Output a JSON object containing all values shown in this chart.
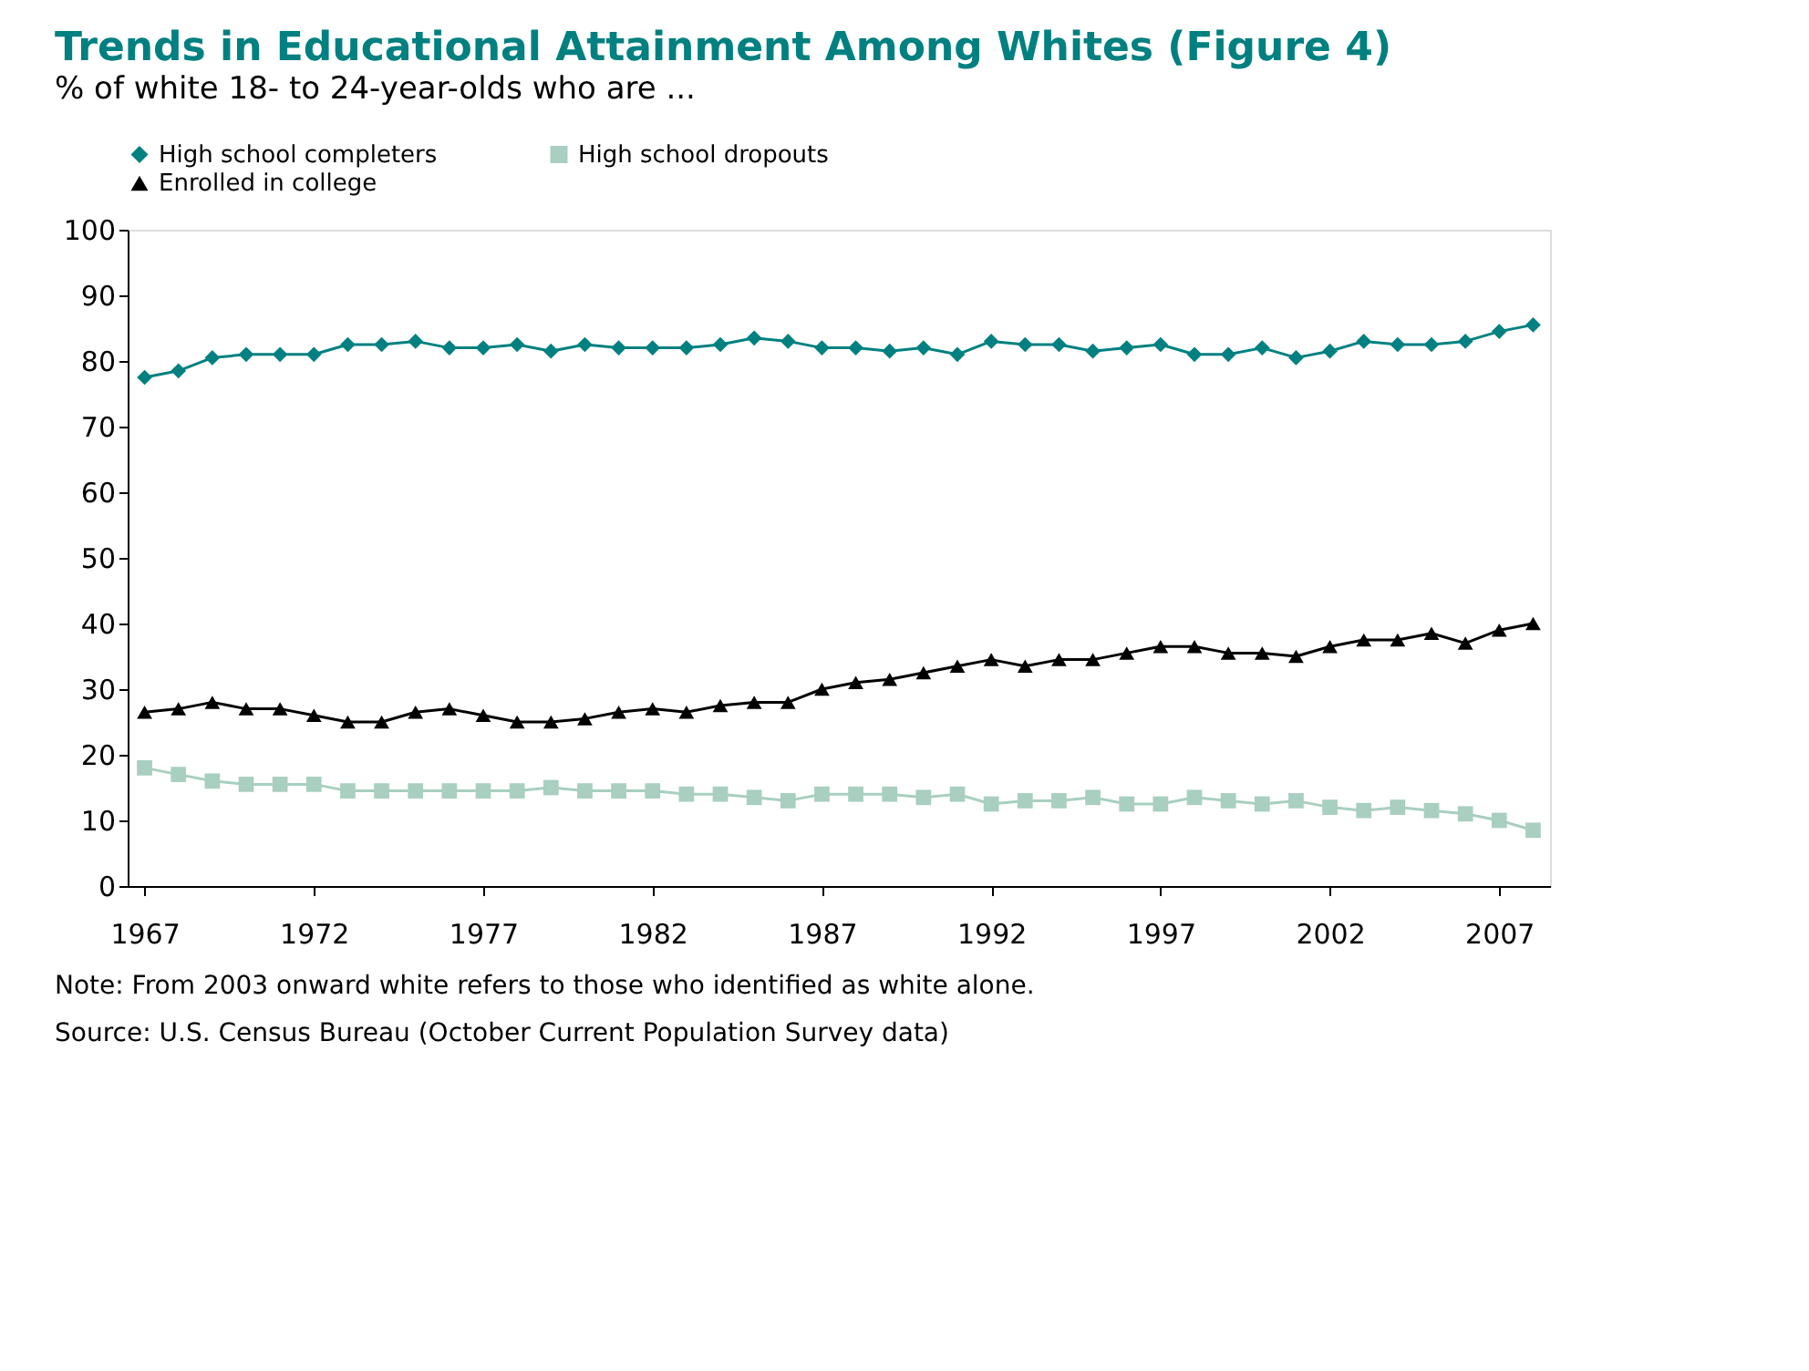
{
  "chart_data": {
    "type": "line",
    "title": "Trends in Educational Attainment Among Whites (Figure 4)",
    "subtitle": "% of white 18- to 24-year-olds who are ...",
    "x": [
      1967,
      1968,
      1969,
      1970,
      1971,
      1972,
      1973,
      1974,
      1975,
      1976,
      1977,
      1978,
      1979,
      1980,
      1981,
      1982,
      1983,
      1984,
      1985,
      1986,
      1987,
      1988,
      1989,
      1990,
      1991,
      1992,
      1993,
      1994,
      1995,
      1996,
      1997,
      1998,
      1999,
      2000,
      2001,
      2002,
      2003,
      2004,
      2005,
      2006,
      2007,
      2008
    ],
    "series": [
      {
        "name": "High school completers",
        "color": "#008080",
        "marker": "diamond",
        "values": [
          77.5,
          78.5,
          80.5,
          81,
          81,
          81,
          82.5,
          82.5,
          83,
          82,
          82,
          82.5,
          81.5,
          82.5,
          82,
          82,
          82,
          82.5,
          83.5,
          83,
          82,
          82,
          81.5,
          82,
          81,
          83,
          82.5,
          82.5,
          81.5,
          82,
          82.5,
          81,
          81,
          82,
          80.5,
          81.5,
          83,
          82.5,
          82.5,
          83,
          84.5,
          85.5
        ]
      },
      {
        "name": "High school dropouts",
        "color": "#a8cfbf",
        "marker": "square",
        "values": [
          18,
          17,
          16,
          15.5,
          15.5,
          15.5,
          14.5,
          14.5,
          14.5,
          14.5,
          14.5,
          14.5,
          15,
          14.5,
          14.5,
          14.5,
          14,
          14,
          13.5,
          13,
          14,
          14,
          14,
          13.5,
          14,
          12.5,
          13,
          13,
          13.5,
          12.5,
          12.5,
          13.5,
          13,
          12.5,
          13,
          12,
          11.5,
          12,
          11.5,
          11,
          10,
          8.5
        ]
      },
      {
        "name": "Enrolled in college",
        "color": "#000000",
        "marker": "triangle",
        "values": [
          26.5,
          27,
          28,
          27,
          27,
          26,
          25,
          25,
          26.5,
          27,
          26,
          25,
          25,
          25.5,
          26.5,
          27,
          26.5,
          27.5,
          28,
          28,
          30,
          31,
          31.5,
          32.5,
          33.5,
          34.5,
          33.5,
          34.5,
          34.5,
          35.5,
          36.5,
          36.5,
          35.5,
          35.5,
          35,
          36.5,
          37.5,
          37.5,
          38.5,
          37,
          39,
          40
        ]
      }
    ],
    "xlim": [
      1966.5,
      2008.5
    ],
    "xticks": [
      1967,
      1972,
      1977,
      1982,
      1987,
      1992,
      1997,
      2002,
      2007
    ],
    "ylim": [
      0,
      100
    ],
    "yticks": [
      0,
      10,
      20,
      30,
      40,
      50,
      60,
      70,
      80,
      90,
      100
    ],
    "grid": false,
    "legend": "top",
    "line_style": "solid",
    "annotations": [
      "Note: From 2003 onward white refers to those who identified as white alone.",
      "Source: U.S. Census Bureau (October Current Population Survey data)"
    ]
  }
}
